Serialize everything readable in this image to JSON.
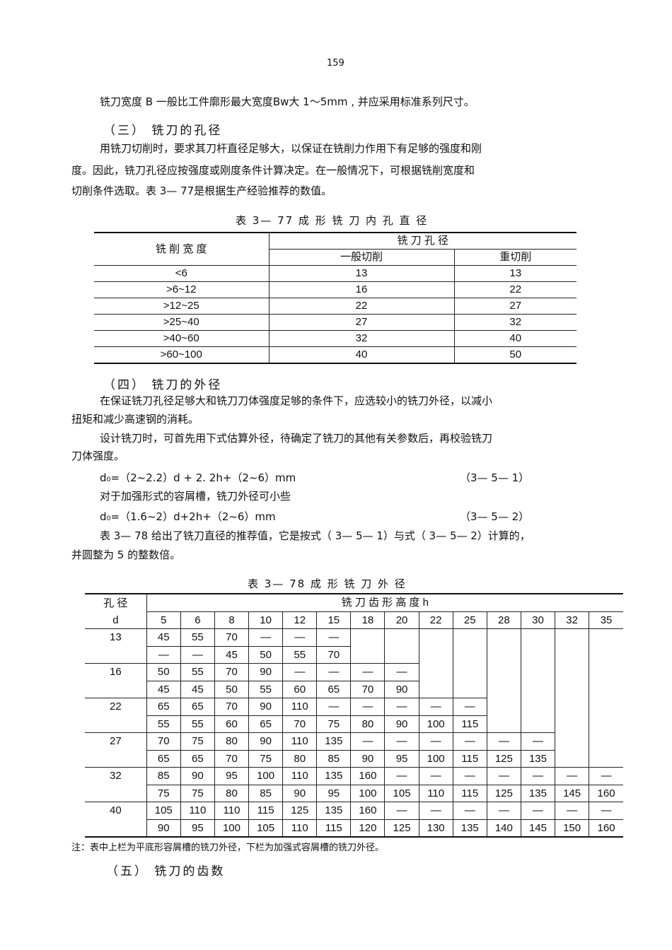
{
  "page_number": "159",
  "para_width": "铣刀宽度  B 一般比工件廓形最大宽度Bw大      1～5mm  , 并应采用标准系列尺寸。",
  "section3": {
    "heading": "（三） 铣刀的孔径",
    "lines": [
      "用铣刀切削时，要求其刀杆直径足够大，以保证在铣削力作用下有足够的强度和刚",
      "度。因此，铣刀孔径应按强度或刚度条件计算决定。在一般情况下，可根据铣削宽度和",
      "切削条件选取。表   3— 77是根据生产经验推荐的数值。"
    ]
  },
  "table77": {
    "caption": "表  3—  77   成 形 铣 刀 内 孔 直 径",
    "col1_header": "铣     削       宽       度",
    "group_header": "铣         刀           孔           径",
    "sub_headers": [
      "一般切削",
      "重切削"
    ],
    "rows": [
      [
        "<6",
        "13",
        "13"
      ],
      [
        ">6~12",
        "16",
        "22"
      ],
      [
        ">12~25",
        "22",
        "27"
      ],
      [
        ">25~40",
        "27",
        "32"
      ],
      [
        ">40~60",
        "32",
        "40"
      ],
      [
        ">60~100",
        "40",
        "50"
      ]
    ]
  },
  "section4": {
    "heading": "（四） 铣刀的外径",
    "lines": [
      "在保证铣刀孔径足够大和铣刀刀体强度足够的条件下，应选较小的铣刀外径，以减小",
      "扭矩和减少高速钢的消耗。",
      "设计铣刀时，可首先用下式估算外径，待确定了铣刀的其他有关参数后，再校验铣刀",
      "刀体强度。"
    ],
    "formula1": "d₀=（2~2.2）d + 2. 2h+（2~6）mm",
    "formula1_no": "（3— 5— 1）",
    "mid_line": "对于加强形式的容屑槽，铣刀外径可小些",
    "formula2": "d₀=（1.6~2）d+2h+（2~6）mm",
    "formula2_no": "（3— 5— 2）",
    "after_lines": [
      "表 3— 78 给出了铣刀直径的推荐值，它是按式（      3— 5— 1）与式（ 3— 5— 2）计算的，",
      "并圆整为   5 的整数倍。"
    ]
  },
  "table78": {
    "caption": "表  3—  78     成 形 铣 刀 外 径",
    "col1_header_top": "孔   径",
    "col1_header_bottom": "d",
    "group_header": "铣      刀      齿      形      高      度      h",
    "h_values": [
      "5",
      "6",
      "8",
      "10",
      "12",
      "15",
      "18",
      "20",
      "22",
      "25",
      "28",
      "30",
      "32",
      "35"
    ],
    "groups": [
      {
        "d": "13",
        "rows": [
          [
            "45",
            "55",
            "70",
            "—",
            "—",
            "—",
            null,
            null,
            null,
            null,
            null,
            null,
            null,
            null
          ],
          [
            "—",
            "—",
            "45",
            "50",
            "55",
            "70",
            null,
            null,
            null,
            null,
            null,
            null,
            null,
            null
          ]
        ]
      },
      {
        "d": "16",
        "rows": [
          [
            "50",
            "55",
            "70",
            "90",
            "—",
            "—",
            "—",
            "—",
            null,
            null,
            null,
            null,
            null,
            null
          ],
          [
            "45",
            "45",
            "50",
            "55",
            "60",
            "65",
            "70",
            "90",
            null,
            null,
            null,
            null,
            null,
            null
          ]
        ]
      },
      {
        "d": "22",
        "rows": [
          [
            "65",
            "65",
            "70",
            "90",
            "110",
            "—",
            "—",
            "—",
            "—",
            "—",
            null,
            null,
            null,
            null
          ],
          [
            "55",
            "55",
            "60",
            "65",
            "70",
            "75",
            "80",
            "90",
            "100",
            "115",
            null,
            null,
            null,
            null
          ]
        ]
      },
      {
        "d": "27",
        "rows": [
          [
            "70",
            "75",
            "80",
            "90",
            "110",
            "135",
            "—",
            "—",
            "—",
            "—",
            "—",
            "—",
            null,
            null
          ],
          [
            "65",
            "65",
            "70",
            "75",
            "80",
            "85",
            "90",
            "95",
            "100",
            "115",
            "125",
            "135",
            null,
            null
          ]
        ]
      },
      {
        "d": "32",
        "rows": [
          [
            "85",
            "90",
            "95",
            "100",
            "110",
            "135",
            "160",
            "—",
            "—",
            "—",
            "—",
            "—",
            "—",
            "—"
          ],
          [
            "75",
            "75",
            "80",
            "85",
            "90",
            "95",
            "100",
            "105",
            "110",
            "115",
            "125",
            "135",
            "145",
            "160"
          ]
        ]
      },
      {
        "d": "40",
        "rows": [
          [
            "105",
            "110",
            "110",
            "115",
            "125",
            "135",
            "160",
            "—",
            "—",
            "—",
            "—",
            "—",
            "—",
            "—"
          ],
          [
            "90",
            "95",
            "100",
            "105",
            "110",
            "115",
            "120",
            "125",
            "130",
            "135",
            "140",
            "145",
            "150",
            "160"
          ]
        ]
      }
    ],
    "note": "注：表中上栏为平底形容屑槽的铣刀外径，下栏为加强式容屑槽的铣刀外径。"
  },
  "section5": {
    "heading": "（五）    铣刀的齿数"
  }
}
